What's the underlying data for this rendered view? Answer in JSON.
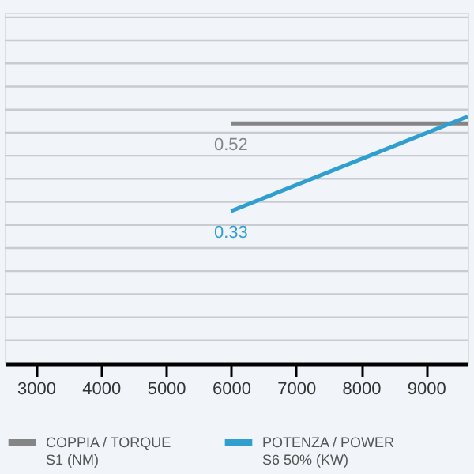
{
  "chart_data": {
    "type": "line",
    "xlim": [
      2520,
      9640
    ],
    "xticks": [
      3000,
      4000,
      5000,
      6000,
      7000,
      8000,
      9000
    ],
    "ylim": [
      0,
      0.76
    ],
    "yticks": [
      {
        "value": 0.05,
        "label": null
      },
      {
        "value": 0.1,
        "label": null
      },
      {
        "value": 0.15,
        "label": null
      },
      {
        "value": 0.2,
        "label": null
      },
      {
        "value": 0.25,
        "label": null
      },
      {
        "value": 0.3,
        "label": null
      },
      {
        "value": 0.35,
        "label": null
      },
      {
        "value": 0.4,
        "label": null
      },
      {
        "value": 0.45,
        "label": null
      },
      {
        "value": 0.5,
        "label": null
      },
      {
        "value": 0.55,
        "label": null
      },
      {
        "value": 0.6,
        "label": null
      },
      {
        "value": 0.65,
        "label": null
      },
      {
        "value": 0.7,
        "label": null
      },
      {
        "value": 0.75,
        "label": null
      }
    ],
    "x": [
      6000,
      9640
    ],
    "tick_labels": "x",
    "grid": "y",
    "legend": "bottom",
    "line_style": "solid",
    "marker": "none",
    "series": [
      {
        "name": "COPPIA / TORQUE\nS1 (NM)",
        "color": "#858585",
        "values": [
          0.52,
          0.52
        ],
        "value_labels": [
          "0.52",
          null
        ]
      },
      {
        "name": "POTENZA / POWER\nS6 50% (KW)",
        "color": "#2f9fd0",
        "values": [
          0.33,
          0.535
        ],
        "value_labels": [
          "0.33",
          null
        ]
      }
    ]
  }
}
